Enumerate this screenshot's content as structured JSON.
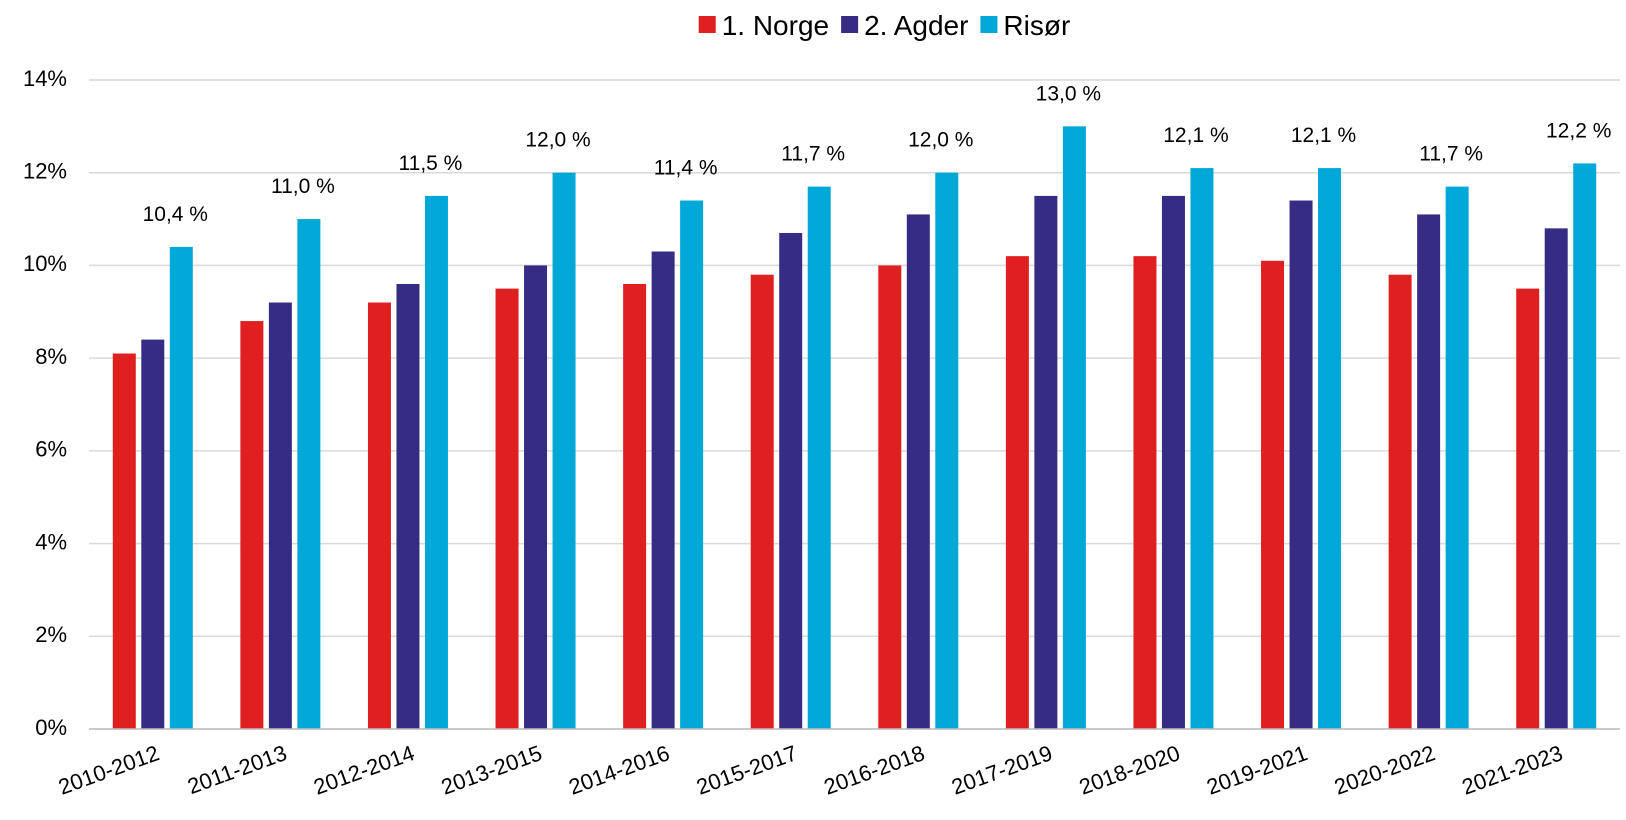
{
  "chart_data": {
    "type": "bar",
    "categories": [
      "2010-2012",
      "2011-2013",
      "2012-2014",
      "2013-2015",
      "2014-2016",
      "2015-2017",
      "2016-2018",
      "2017-2019",
      "2018-2020",
      "2019-2021",
      "2020-2022",
      "2021-2023"
    ],
    "series": [
      {
        "name": "1. Norge",
        "color": "#e02020",
        "values": [
          8.1,
          8.8,
          9.2,
          9.5,
          9.6,
          9.8,
          10.0,
          10.2,
          10.2,
          10.1,
          9.8,
          9.5
        ]
      },
      {
        "name": "2. Agder",
        "color": "#372c83",
        "values": [
          8.4,
          9.2,
          9.6,
          10.0,
          10.3,
          10.7,
          11.1,
          11.5,
          11.5,
          11.4,
          11.1,
          10.8
        ]
      },
      {
        "name": "Risør",
        "color": "#00a8d8",
        "values": [
          10.4,
          11.0,
          11.5,
          12.0,
          11.4,
          11.7,
          12.0,
          13.0,
          12.1,
          12.1,
          11.7,
          12.2
        ],
        "value_labels": [
          "10,4 %",
          "11,0 %",
          "11,5 %",
          "12,0 %",
          "11,4 %",
          "11,7 %",
          "12,0 %",
          "13,0 %",
          "12,1 %",
          "12,1 %",
          "11,7 %",
          "12,2 %"
        ]
      }
    ],
    "ylim": [
      0,
      14
    ],
    "yticks": [
      {
        "value": 0,
        "label": "0%"
      },
      {
        "value": 2,
        "label": "2%"
      },
      {
        "value": 4,
        "label": "4%"
      },
      {
        "value": 6,
        "label": "6%"
      },
      {
        "value": 8,
        "label": "8%"
      },
      {
        "value": 10,
        "label": "10%"
      },
      {
        "value": 12,
        "label": "12%"
      },
      {
        "value": 14,
        "label": "14%"
      }
    ],
    "grid": true,
    "legend": "top"
  }
}
